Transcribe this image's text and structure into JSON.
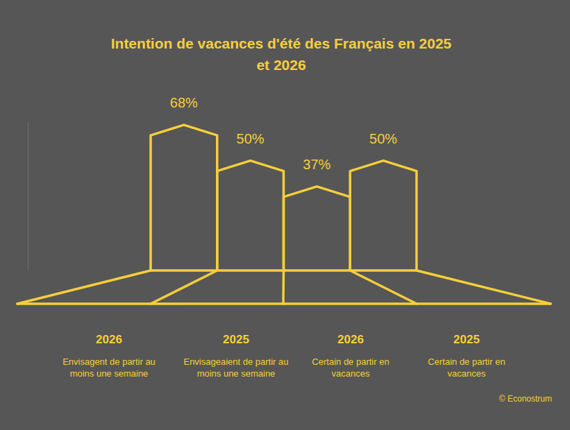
{
  "chart_data": {
    "type": "bar",
    "title": "Intention de vacances d'été des Français en 2025 et 2026",
    "categories": [
      "2026",
      "2025",
      "2026",
      "2025"
    ],
    "descriptions": [
      "Envisagent de partir au moins une semaine",
      "Envisageaient de partir au moins une semaine",
      "Certain de partir en vacances",
      "Certain de partir en vacances"
    ],
    "values": [
      68,
      50,
      37,
      50
    ],
    "value_labels": [
      "68%",
      "50%",
      "37%",
      "50%"
    ],
    "data_labels": true,
    "tick_labels": false,
    "ylim": [
      0,
      75
    ],
    "color": "#f6cf3a",
    "source": "© Econostrum"
  }
}
